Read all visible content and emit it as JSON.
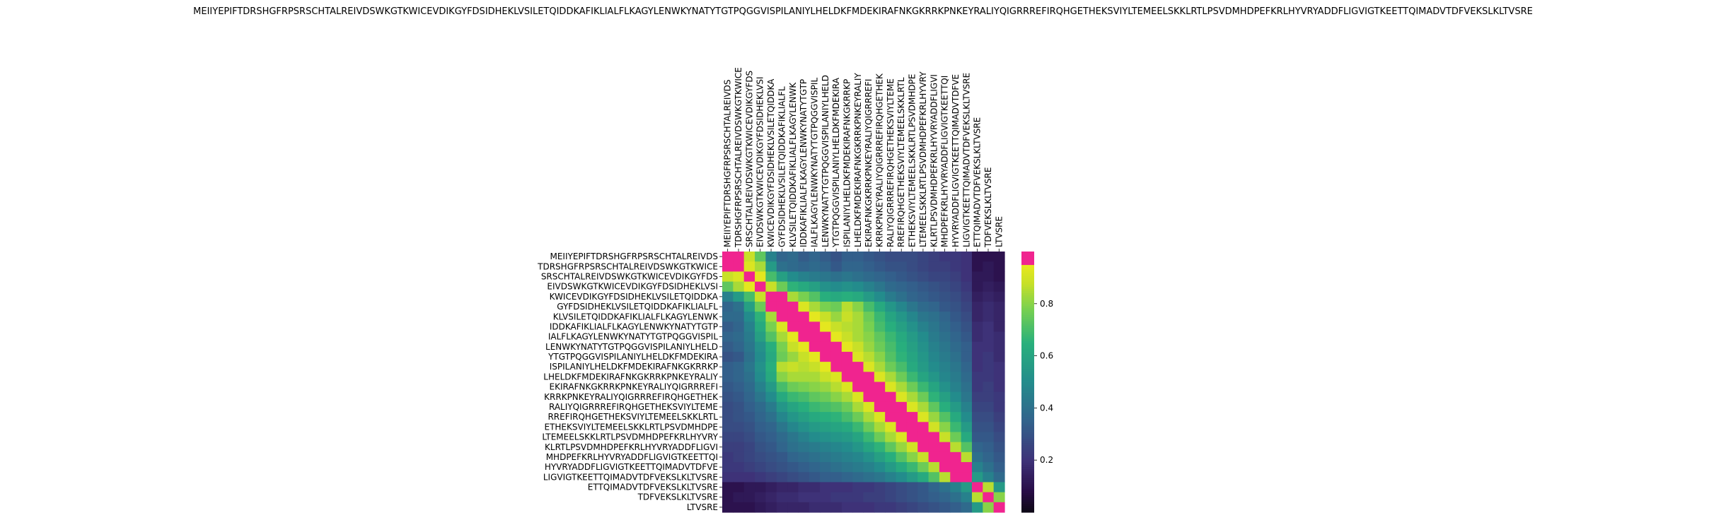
{
  "chart_data": {
    "type": "heatmap",
    "title": "MEIIYEPIFTDRSHGFRPSRSCHTALREIVDSWKGTKWICEVDIKGYFDSIDHEKLVSILETQIDDKAFIKLIALFLKAGYLENWKYNATYTGTPQGGVISPILANIYLHELDKFMDEKIRAFNKGKRRKPNKEYRALIYQIGRRREFIRQHGETHEKSVIYLTEMEELSKKLRTLPSVDMHDPEFKRLHYVRYADDFLIGVIGTKEETTQIMADVTDFVEKSLKLTVSRE",
    "row_labels": [
      "MEIIYEPIFTDRSHGFRPSRSCHTALREIVDS",
      "TDRSHGFRPSRSCHTALREIVDSWKGTKWICE",
      "SRSCHTALREIVDSWKGTKWICEVDIKGYFDS",
      "EIVDSWKGTKWICEVDIKGYFDSIDHEKLVSI",
      "KWICEVDIKGYFDSIDHEKLVSILETQIDDKA",
      "GYFDSIDHEKLVSILETQIDDKAFIKLIALFL",
      "KLVSILETQIDDKAFIKLIALFLKAGYLENWK",
      "IDDKAFIKLIALFLKAGYLENWKYNATYTGTP",
      "IALFLKAGYLENWKYNATYTGTPQGGVISPIL",
      "LENWKYNATYTGTPQGGVISPILANIYLHELD",
      "YTGTPQGGVISPILANIYLHELDKFMDEKIRA",
      "ISPILANIYLHELDKFMDEKIRAFNKGKRRKP",
      "LHELDKFMDEKIRAFNKGKRRKPNKEYRALIY",
      "EKIRAFNKGKRRKPNKEYRALIYQIGRRREFI",
      "KRRKPNKEYRALIYQIGRRREFIRQHGETHEK",
      "RALIYQIGRRREFIRQHGETHEKSVIYLTEME",
      "RREFIRQHGETHEKSVIYLTEMEELSKKLRTL",
      "ETHEKSVIYLTEMEELSKKLRTLPSVDMHDPE",
      "LTEMEELSKKLRTLPSVDMHDPEFKRLHYVRY",
      "KLRTLPSVDMHDPEFKRLHYVRYADDFLIGVI",
      "MHDPEFKRLHYVRYADDFLIGVIGTKEETTQI",
      "HYVRYADDFLIGVIGTKEETTQIMADVTDFVE",
      "LIGVIGTKEETTQIMADVTDFVEKSLKLTVSRE",
      "ETTQIMADVTDFVEKSLKLTVSRE",
      "TDFVEKSLKLTVSRE",
      "LTVSRE"
    ],
    "col_labels": [
      "MEIIYEPIFTDRSHGFRPSRSCHTALREIVDS",
      "TDRSHGFRPSRSCHTALREIVDSWKGTKWICE",
      "SRSCHTALREIVDSWKGTKWICEVDIKGYFDS",
      "EIVDSWKGTKWICEVDIKGYFDSIDHEKLVSI",
      "KWICEVDIKGYFDSIDHEKLVSILETQIDDKA",
      "GYFDSIDHEKLVSILETQIDDKAFIKLIALFL",
      "KLVSILETQIDDKAFIKLIALFLKAGYLENWK",
      "IDDKAFIKLIALFLKAGYLENWKYNATYTGTP",
      "IALFLKAGYLENWKYNATYTGTPQGGVISPIL",
      "LENWKYNATYTGTPQGGVISPILANIYLHELD",
      "YTGTPQGGVISPILANIYLHELDKFMDEKIRA",
      "ISPILANIYLHELDKFMDEKIRAFNKGKRRKP",
      "LHELDKFMDEKIRAFNKGKRRKPNKEYRALIY",
      "EKIRAFNKGKRRKPNKEYRALIYQIGRRREFI",
      "KRRKPNKEYRALIYQIGRRREFIRQHGETHEK",
      "RALIYQIGRRREFIRQHGETHEKSVIYLTEME",
      "RREFIRQHGETHEKSVIYLTEMEELSKKLRTL",
      "ETHEKSVIYLTEMEELSKKLRTLPSVDMHDPE",
      "LTEMEELSKKLRTLPSVDMHDPEFKRLHYVRY",
      "KLRTLPSVDMHDPEFKRLHYVRYADDFLIGVI",
      "MHDPEFKRLHYVRYADDFLIGVIGTKEETTQI",
      "HYVRYADDFLIGVIGTKEETTQIMADVTDFVE",
      "LIGVIGTKEETTQIMADVTDFVEKSLKLTVSRE",
      "ETTQIMADVTDFVEKSLKLTVSRE",
      "TDFVEKSLKLTVSRE",
      "LTVSRE"
    ],
    "values": [
      [
        1.0,
        0.96,
        0.88,
        0.74,
        0.46,
        0.36,
        0.38,
        0.33,
        0.36,
        0.33,
        0.3,
        0.34,
        0.34,
        0.32,
        0.3,
        0.28,
        0.28,
        0.28,
        0.26,
        0.24,
        0.22,
        0.22,
        0.2,
        0.1,
        0.1,
        0.1
      ],
      [
        0.96,
        1.0,
        0.92,
        0.84,
        0.56,
        0.4,
        0.38,
        0.36,
        0.38,
        0.36,
        0.32,
        0.36,
        0.36,
        0.34,
        0.32,
        0.3,
        0.3,
        0.28,
        0.26,
        0.24,
        0.24,
        0.22,
        0.2,
        0.1,
        0.12,
        0.1
      ],
      [
        0.88,
        0.92,
        1.0,
        0.94,
        0.7,
        0.58,
        0.5,
        0.46,
        0.44,
        0.42,
        0.4,
        0.42,
        0.4,
        0.38,
        0.36,
        0.34,
        0.32,
        0.3,
        0.28,
        0.26,
        0.26,
        0.24,
        0.2,
        0.12,
        0.12,
        0.1
      ],
      [
        0.74,
        0.84,
        0.94,
        1.0,
        0.88,
        0.76,
        0.66,
        0.62,
        0.58,
        0.52,
        0.5,
        0.52,
        0.5,
        0.46,
        0.42,
        0.38,
        0.36,
        0.34,
        0.32,
        0.3,
        0.28,
        0.26,
        0.22,
        0.12,
        0.14,
        0.12
      ],
      [
        0.46,
        0.56,
        0.7,
        0.88,
        1.0,
        0.96,
        0.84,
        0.78,
        0.72,
        0.64,
        0.62,
        0.64,
        0.62,
        0.56,
        0.5,
        0.44,
        0.4,
        0.36,
        0.34,
        0.32,
        0.3,
        0.28,
        0.24,
        0.14,
        0.16,
        0.14
      ],
      [
        0.36,
        0.4,
        0.58,
        0.76,
        0.96,
        1.0,
        0.97,
        0.92,
        0.84,
        0.78,
        0.76,
        0.86,
        0.8,
        0.7,
        0.62,
        0.54,
        0.48,
        0.42,
        0.38,
        0.36,
        0.32,
        0.3,
        0.26,
        0.16,
        0.18,
        0.16
      ],
      [
        0.38,
        0.38,
        0.5,
        0.66,
        0.84,
        0.97,
        1.0,
        0.98,
        0.94,
        0.88,
        0.82,
        0.88,
        0.84,
        0.76,
        0.68,
        0.6,
        0.54,
        0.48,
        0.42,
        0.4,
        0.36,
        0.32,
        0.28,
        0.16,
        0.18,
        0.16
      ],
      [
        0.33,
        0.36,
        0.46,
        0.62,
        0.78,
        0.92,
        0.98,
        1.0,
        0.98,
        0.94,
        0.88,
        0.86,
        0.84,
        0.78,
        0.7,
        0.64,
        0.58,
        0.52,
        0.46,
        0.42,
        0.38,
        0.34,
        0.3,
        0.18,
        0.2,
        0.16
      ],
      [
        0.36,
        0.38,
        0.44,
        0.58,
        0.72,
        0.84,
        0.94,
        0.98,
        1.0,
        0.98,
        0.94,
        0.88,
        0.84,
        0.8,
        0.74,
        0.68,
        0.62,
        0.56,
        0.5,
        0.44,
        0.4,
        0.36,
        0.32,
        0.18,
        0.2,
        0.18
      ],
      [
        0.33,
        0.36,
        0.42,
        0.52,
        0.64,
        0.78,
        0.88,
        0.94,
        0.98,
        1.0,
        0.98,
        0.94,
        0.88,
        0.82,
        0.76,
        0.7,
        0.64,
        0.58,
        0.52,
        0.46,
        0.42,
        0.38,
        0.34,
        0.2,
        0.2,
        0.18
      ],
      [
        0.3,
        0.32,
        0.4,
        0.5,
        0.62,
        0.76,
        0.82,
        0.88,
        0.94,
        0.98,
        1.0,
        0.98,
        0.92,
        0.86,
        0.8,
        0.72,
        0.66,
        0.6,
        0.54,
        0.48,
        0.44,
        0.4,
        0.34,
        0.2,
        0.22,
        0.18
      ],
      [
        0.34,
        0.36,
        0.42,
        0.52,
        0.64,
        0.86,
        0.88,
        0.86,
        0.88,
        0.94,
        0.98,
        1.0,
        0.98,
        0.92,
        0.84,
        0.76,
        0.7,
        0.62,
        0.56,
        0.5,
        0.46,
        0.42,
        0.36,
        0.2,
        0.22,
        0.2
      ],
      [
        0.34,
        0.36,
        0.4,
        0.5,
        0.62,
        0.8,
        0.84,
        0.84,
        0.84,
        0.88,
        0.92,
        0.98,
        1.0,
        0.98,
        0.92,
        0.84,
        0.76,
        0.68,
        0.6,
        0.54,
        0.48,
        0.44,
        0.38,
        0.22,
        0.22,
        0.2
      ],
      [
        0.32,
        0.34,
        0.38,
        0.46,
        0.56,
        0.7,
        0.76,
        0.78,
        0.8,
        0.82,
        0.86,
        0.92,
        0.98,
        1.0,
        0.98,
        0.92,
        0.84,
        0.76,
        0.68,
        0.6,
        0.52,
        0.46,
        0.4,
        0.22,
        0.24,
        0.2
      ],
      [
        0.3,
        0.32,
        0.36,
        0.42,
        0.5,
        0.62,
        0.68,
        0.7,
        0.74,
        0.76,
        0.8,
        0.84,
        0.92,
        0.98,
        1.0,
        0.98,
        0.92,
        0.84,
        0.76,
        0.66,
        0.58,
        0.5,
        0.42,
        0.24,
        0.24,
        0.22
      ],
      [
        0.28,
        0.3,
        0.34,
        0.38,
        0.44,
        0.54,
        0.6,
        0.64,
        0.68,
        0.7,
        0.72,
        0.76,
        0.84,
        0.92,
        0.98,
        1.0,
        0.98,
        0.92,
        0.84,
        0.74,
        0.64,
        0.56,
        0.46,
        0.26,
        0.26,
        0.22
      ],
      [
        0.28,
        0.3,
        0.32,
        0.36,
        0.4,
        0.48,
        0.54,
        0.58,
        0.62,
        0.64,
        0.66,
        0.7,
        0.76,
        0.84,
        0.92,
        0.98,
        1.0,
        0.98,
        0.92,
        0.82,
        0.72,
        0.62,
        0.5,
        0.28,
        0.28,
        0.24
      ],
      [
        0.28,
        0.28,
        0.3,
        0.34,
        0.36,
        0.42,
        0.48,
        0.52,
        0.56,
        0.58,
        0.6,
        0.62,
        0.68,
        0.76,
        0.84,
        0.92,
        0.98,
        1.0,
        0.98,
        0.9,
        0.8,
        0.68,
        0.56,
        0.3,
        0.3,
        0.26
      ],
      [
        0.26,
        0.26,
        0.28,
        0.32,
        0.34,
        0.38,
        0.42,
        0.46,
        0.5,
        0.52,
        0.54,
        0.56,
        0.6,
        0.68,
        0.76,
        0.84,
        0.92,
        0.98,
        1.0,
        0.98,
        0.88,
        0.76,
        0.62,
        0.32,
        0.32,
        0.28
      ],
      [
        0.24,
        0.24,
        0.26,
        0.3,
        0.32,
        0.36,
        0.4,
        0.42,
        0.44,
        0.46,
        0.48,
        0.5,
        0.54,
        0.6,
        0.66,
        0.74,
        0.82,
        0.9,
        0.98,
        1.0,
        0.96,
        0.86,
        0.72,
        0.36,
        0.34,
        0.3
      ],
      [
        0.22,
        0.24,
        0.26,
        0.28,
        0.3,
        0.32,
        0.36,
        0.38,
        0.4,
        0.42,
        0.44,
        0.46,
        0.48,
        0.52,
        0.58,
        0.64,
        0.72,
        0.8,
        0.88,
        0.96,
        1.0,
        0.96,
        0.86,
        0.4,
        0.36,
        0.32
      ],
      [
        0.22,
        0.22,
        0.24,
        0.26,
        0.28,
        0.3,
        0.32,
        0.34,
        0.36,
        0.38,
        0.4,
        0.42,
        0.44,
        0.46,
        0.5,
        0.56,
        0.62,
        0.68,
        0.76,
        0.86,
        0.96,
        1.0,
        0.96,
        0.46,
        0.4,
        0.34
      ],
      [
        0.2,
        0.2,
        0.2,
        0.22,
        0.24,
        0.26,
        0.28,
        0.3,
        0.32,
        0.34,
        0.34,
        0.36,
        0.38,
        0.4,
        0.42,
        0.46,
        0.5,
        0.56,
        0.62,
        0.72,
        0.86,
        0.96,
        1.0,
        0.56,
        0.46,
        0.38
      ],
      [
        0.1,
        0.1,
        0.12,
        0.12,
        0.14,
        0.16,
        0.16,
        0.18,
        0.18,
        0.2,
        0.2,
        0.2,
        0.22,
        0.22,
        0.24,
        0.26,
        0.28,
        0.3,
        0.32,
        0.36,
        0.4,
        0.46,
        0.56,
        1.0,
        0.86,
        0.56
      ],
      [
        0.1,
        0.12,
        0.12,
        0.14,
        0.16,
        0.18,
        0.18,
        0.2,
        0.2,
        0.2,
        0.22,
        0.22,
        0.22,
        0.24,
        0.24,
        0.26,
        0.28,
        0.3,
        0.32,
        0.34,
        0.36,
        0.4,
        0.46,
        0.86,
        1.0,
        0.8
      ],
      [
        0.1,
        0.1,
        0.1,
        0.12,
        0.14,
        0.16,
        0.16,
        0.16,
        0.18,
        0.18,
        0.18,
        0.2,
        0.2,
        0.2,
        0.22,
        0.22,
        0.24,
        0.26,
        0.28,
        0.3,
        0.32,
        0.34,
        0.38,
        0.56,
        0.8,
        1.0
      ]
    ],
    "colorbar": {
      "ticks": [
        "0.2",
        "0.4",
        "0.6",
        "0.8"
      ],
      "tick_values": [
        0.2,
        0.4,
        0.6,
        0.8
      ],
      "range": [
        0.0,
        1.0
      ],
      "colormap": "viridis",
      "highlight_above": 0.95,
      "highlight_color": "#f0248f"
    },
    "xlabel": "",
    "ylabel": "",
    "grid": false
  }
}
